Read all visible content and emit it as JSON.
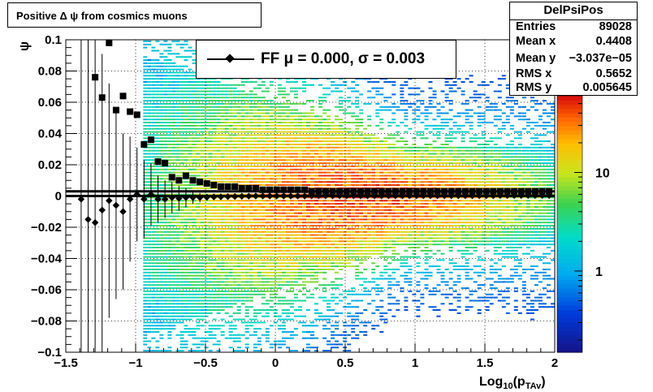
{
  "title": "Positive Δ ψ from cosmics muons",
  "stats": {
    "name": "DelPsiPos",
    "rows": [
      {
        "label": "Entries",
        "value": "89028"
      },
      {
        "label": "Mean x",
        "value": "0.4408"
      },
      {
        "label": "Mean y",
        "value": "−3.037e−05"
      },
      {
        "label": "RMS x",
        "value": "0.5652"
      },
      {
        "label": "RMS y",
        "value": "0.005645"
      }
    ]
  },
  "legend": {
    "label": "FF μ =  0.000, σ =   0.003"
  },
  "colors": {
    "marker": "#000000",
    "grid": "#000000",
    "frame": "#000000"
  },
  "chart_data": {
    "type": "heatmap",
    "xlabel": "Log",
    "xlabel_sub": "10",
    "xlabel_rest": "(p",
    "xlabel_sub2": "TAv",
    "xlabel_end": ")",
    "ylabel": "ψ",
    "xlim": [
      -1.5,
      2
    ],
    "ylim": [
      -0.1,
      0.1
    ],
    "x_ticks": [
      {
        "v": -1.5,
        "label": "−1.5"
      },
      {
        "v": -1,
        "label": "−1"
      },
      {
        "v": -0.5,
        "label": "−0.5"
      },
      {
        "v": 0,
        "label": "0"
      },
      {
        "v": 0.5,
        "label": "0.5"
      },
      {
        "v": 1,
        "label": "1"
      },
      {
        "v": 1.5,
        "label": "1.5"
      },
      {
        "v": 2,
        "label": "2"
      }
    ],
    "y_ticks": [
      {
        "v": -0.1,
        "label": "−0.1"
      },
      {
        "v": -0.08,
        "label": "−0.08"
      },
      {
        "v": -0.06,
        "label": "−0.06"
      },
      {
        "v": -0.04,
        "label": "−0.04"
      },
      {
        "v": -0.02,
        "label": "−0.02"
      },
      {
        "v": 0,
        "label": "0"
      },
      {
        "v": 0.02,
        "label": "0.02"
      },
      {
        "v": 0.04,
        "label": "0.04"
      },
      {
        "v": 0.06,
        "label": "0.06"
      },
      {
        "v": 0.08,
        "label": "0.08"
      },
      {
        "v": 0.1,
        "label": "0.1"
      }
    ],
    "grid": true,
    "z_scale": "log",
    "colorbar": {
      "ticks": [
        {
          "v": 1,
          "label": "1"
        },
        {
          "v": 10,
          "label": "10"
        }
      ],
      "zlim": [
        0.15,
        60
      ]
    },
    "series": [
      {
        "name": "FF",
        "marker": "diamond",
        "points": [
          {
            "x": -1.39,
            "y": -0.002,
            "err": 0.2
          },
          {
            "x": -1.34,
            "y": -0.015,
            "err": 0.2
          },
          {
            "x": -1.29,
            "y": -0.017,
            "err": 0.17
          },
          {
            "x": -1.24,
            "y": -0.009,
            "err": 0.1
          },
          {
            "x": -1.19,
            "y": -0.003,
            "err": 0.075
          },
          {
            "x": -1.14,
            "y": -0.006,
            "err": 0.06
          },
          {
            "x": -1.09,
            "y": -0.01,
            "err": 0.05
          },
          {
            "x": -1.04,
            "y": -0.002,
            "err": 0.04
          },
          {
            "x": -0.99,
            "y": 0.001,
            "err": 0.03
          },
          {
            "x": -0.94,
            "y": -0.002,
            "err": 0.025
          },
          {
            "x": -0.89,
            "y": 0.001,
            "err": 0.02
          },
          {
            "x": -0.84,
            "y": -0.002,
            "err": 0.015
          },
          {
            "x": -0.79,
            "y": -0.002,
            "err": 0.012
          },
          {
            "x": -0.74,
            "y": -0.001,
            "err": 0.01
          },
          {
            "x": -0.69,
            "y": -0.0015,
            "err": 0.008
          },
          {
            "x": -0.64,
            "y": -0.001,
            "err": 0.006
          },
          {
            "x": -0.59,
            "y": -0.001,
            "err": 0.004
          },
          {
            "x": -0.54,
            "y": -0.001,
            "err": 0.003
          },
          {
            "x": -0.49,
            "y": -0.0008,
            "err": 0.002
          },
          {
            "x": -0.44,
            "y": -0.0006,
            "err": 0.002
          },
          {
            "x": -0.39,
            "y": -0.0005,
            "err": 0.001
          },
          {
            "x": -0.34,
            "y": -0.0004,
            "err": 0.001
          },
          {
            "x": -0.29,
            "y": -0.0003,
            "err": 0.001
          },
          {
            "x": -0.24,
            "y": -0.0002,
            "err": 0.001
          },
          {
            "x": -0.19,
            "y": -0.0001,
            "err": 0.001
          },
          {
            "x": -0.14,
            "y": 0.0,
            "err": 0.001
          },
          {
            "x": -0.09,
            "y": 0.0,
            "err": 0.001
          },
          {
            "x": -0.04,
            "y": 0.0,
            "err": 0.001
          },
          {
            "x": 0.01,
            "y": 0.0,
            "err": 0.0008
          },
          {
            "x": 0.06,
            "y": 0.0,
            "err": 0.0008
          },
          {
            "x": 0.11,
            "y": 0.0,
            "err": 0.0008
          },
          {
            "x": 0.16,
            "y": 0.0,
            "err": 0.0008
          },
          {
            "x": 0.21,
            "y": 0.0,
            "err": 0.0008
          },
          {
            "x": 0.26,
            "y": 0.0001,
            "err": 0.0008
          },
          {
            "x": 0.31,
            "y": 0.0001,
            "err": 0.0008
          },
          {
            "x": 0.36,
            "y": 0.0001,
            "err": 0.0008
          },
          {
            "x": 0.41,
            "y": 0.0001,
            "err": 0.0008
          },
          {
            "x": 0.46,
            "y": 0.0001,
            "err": 0.0008
          },
          {
            "x": 0.51,
            "y": 0.0001,
            "err": 0.0008
          },
          {
            "x": 0.56,
            "y": 0.0001,
            "err": 0.0008
          },
          {
            "x": 0.61,
            "y": 0.0001,
            "err": 0.0008
          },
          {
            "x": 0.66,
            "y": 0.0001,
            "err": 0.0008
          },
          {
            "x": 0.71,
            "y": 0.0001,
            "err": 0.0008
          },
          {
            "x": 0.76,
            "y": 0.0001,
            "err": 0.0008
          },
          {
            "x": 0.81,
            "y": 0.0001,
            "err": 0.0008
          },
          {
            "x": 0.86,
            "y": 0.0001,
            "err": 0.0008
          },
          {
            "x": 0.91,
            "y": 0.0002,
            "err": 0.0008
          },
          {
            "x": 0.96,
            "y": 0.0002,
            "err": 0.0008
          },
          {
            "x": 1.01,
            "y": 0.0002,
            "err": 0.0008
          },
          {
            "x": 1.06,
            "y": 0.0002,
            "err": 0.0008
          },
          {
            "x": 1.11,
            "y": 0.0002,
            "err": 0.0008
          },
          {
            "x": 1.16,
            "y": 0.0002,
            "err": 0.0008
          },
          {
            "x": 1.21,
            "y": 0.0002,
            "err": 0.0008
          },
          {
            "x": 1.26,
            "y": 0.0002,
            "err": 0.0008
          },
          {
            "x": 1.31,
            "y": 0.0002,
            "err": 0.0008
          },
          {
            "x": 1.36,
            "y": 0.0002,
            "err": 0.0008
          },
          {
            "x": 1.41,
            "y": 0.0002,
            "err": 0.0008
          },
          {
            "x": 1.46,
            "y": 0.0002,
            "err": 0.0008
          },
          {
            "x": 1.51,
            "y": 0.0002,
            "err": 0.0008
          },
          {
            "x": 1.56,
            "y": 0.0002,
            "err": 0.0008
          },
          {
            "x": 1.61,
            "y": 0.0003,
            "err": 0.0008
          },
          {
            "x": 1.66,
            "y": 0.0003,
            "err": 0.0008
          },
          {
            "x": 1.71,
            "y": 0.0003,
            "err": 0.0008
          },
          {
            "x": 1.76,
            "y": 0.0003,
            "err": 0.0008
          },
          {
            "x": 1.81,
            "y": 0.0003,
            "err": 0.0008
          },
          {
            "x": 1.86,
            "y": 0.0003,
            "err": 0.0008
          },
          {
            "x": 1.91,
            "y": 0.0003,
            "err": 0.0008
          },
          {
            "x": 1.96,
            "y": 0.0003,
            "err": 0.0008
          }
        ]
      },
      {
        "marker": "square",
        "points": [
          {
            "x": -1.29,
            "y": 0.076
          },
          {
            "x": -1.24,
            "y": 0.063
          },
          {
            "x": -1.19,
            "y": 0.098
          },
          {
            "x": -1.14,
            "y": 0.055
          },
          {
            "x": -1.09,
            "y": 0.064
          },
          {
            "x": -1.04,
            "y": 0.054
          },
          {
            "x": -0.99,
            "y": 0.052
          },
          {
            "x": -0.94,
            "y": 0.033
          },
          {
            "x": -0.89,
            "y": 0.036
          },
          {
            "x": -0.84,
            "y": 0.022
          },
          {
            "x": -0.79,
            "y": 0.021
          },
          {
            "x": -0.74,
            "y": 0.012
          },
          {
            "x": -0.69,
            "y": 0.01
          },
          {
            "x": -0.64,
            "y": 0.013
          },
          {
            "x": -0.59,
            "y": 0.01
          },
          {
            "x": -0.54,
            "y": 0.009
          },
          {
            "x": -0.49,
            "y": 0.008
          },
          {
            "x": -0.44,
            "y": 0.007
          },
          {
            "x": -0.39,
            "y": 0.006
          },
          {
            "x": -0.34,
            "y": 0.006
          },
          {
            "x": -0.29,
            "y": 0.006
          },
          {
            "x": -0.24,
            "y": 0.005
          },
          {
            "x": -0.19,
            "y": 0.005
          },
          {
            "x": -0.14,
            "y": 0.005
          },
          {
            "x": -0.09,
            "y": 0.004
          },
          {
            "x": -0.04,
            "y": 0.004
          },
          {
            "x": 0.01,
            "y": 0.004
          },
          {
            "x": 0.06,
            "y": 0.004
          },
          {
            "x": 0.11,
            "y": 0.004
          },
          {
            "x": 0.16,
            "y": 0.004
          },
          {
            "x": 0.21,
            "y": 0.004
          },
          {
            "x": 0.26,
            "y": 0.003
          },
          {
            "x": 0.31,
            "y": 0.003
          },
          {
            "x": 0.36,
            "y": 0.003
          },
          {
            "x": 0.41,
            "y": 0.003
          },
          {
            "x": 0.46,
            "y": 0.003
          },
          {
            "x": 0.51,
            "y": 0.003
          },
          {
            "x": 0.56,
            "y": 0.003
          },
          {
            "x": 0.61,
            "y": 0.003
          },
          {
            "x": 0.66,
            "y": 0.003
          },
          {
            "x": 0.71,
            "y": 0.003
          },
          {
            "x": 0.76,
            "y": 0.003
          },
          {
            "x": 0.81,
            "y": 0.003
          },
          {
            "x": 0.86,
            "y": 0.003
          },
          {
            "x": 0.91,
            "y": 0.003
          },
          {
            "x": 0.96,
            "y": 0.003
          },
          {
            "x": 1.01,
            "y": 0.003
          },
          {
            "x": 1.06,
            "y": 0.003
          },
          {
            "x": 1.11,
            "y": 0.003
          },
          {
            "x": 1.16,
            "y": 0.003
          },
          {
            "x": 1.21,
            "y": 0.003
          },
          {
            "x": 1.26,
            "y": 0.003
          },
          {
            "x": 1.31,
            "y": 0.003
          },
          {
            "x": 1.36,
            "y": 0.003
          },
          {
            "x": 1.41,
            "y": 0.003
          },
          {
            "x": 1.46,
            "y": 0.003
          },
          {
            "x": 1.51,
            "y": 0.003
          },
          {
            "x": 1.56,
            "y": 0.003
          },
          {
            "x": 1.61,
            "y": 0.003
          },
          {
            "x": 1.66,
            "y": 0.003
          },
          {
            "x": 1.71,
            "y": 0.003
          },
          {
            "x": 1.76,
            "y": 0.003
          },
          {
            "x": 1.81,
            "y": 0.003
          },
          {
            "x": 1.86,
            "y": 0.003
          },
          {
            "x": 1.91,
            "y": 0.003
          },
          {
            "x": 1.96,
            "y": 0.003
          }
        ]
      }
    ],
    "fit_lines": [
      {
        "y": 0.003
      },
      {
        "y": 0.0
      }
    ],
    "density": {
      "description_model": "gaussian band around psi=0 whose width narrows with x",
      "peak_x": 0.6,
      "peak_counts": 45
    }
  }
}
